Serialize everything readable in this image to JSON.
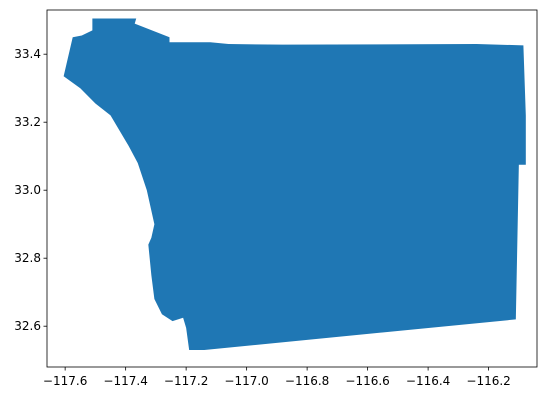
{
  "chart_data": {
    "type": "map",
    "title": "",
    "xlabel": "",
    "ylabel": "",
    "xlim": [
      -117.66,
      -116.04
    ],
    "ylim": [
      32.48,
      33.53
    ],
    "grid": false,
    "x_ticks": [
      {
        "value": -117.6,
        "label": "−117.6"
      },
      {
        "value": -117.4,
        "label": "−117.4"
      },
      {
        "value": -117.2,
        "label": "−117.2"
      },
      {
        "value": -117.0,
        "label": "−117.0"
      },
      {
        "value": -116.8,
        "label": "−116.8"
      },
      {
        "value": -116.6,
        "label": "−116.6"
      },
      {
        "value": -116.4,
        "label": "−116.4"
      },
      {
        "value": -116.2,
        "label": "−116.2"
      }
    ],
    "y_ticks": [
      {
        "value": 32.6,
        "label": "32.6"
      },
      {
        "value": 32.8,
        "label": "32.8"
      },
      {
        "value": 33.0,
        "label": "33.0"
      },
      {
        "value": 33.2,
        "label": "33.2"
      },
      {
        "value": 33.4,
        "label": "33.4"
      }
    ],
    "fill_color": "#1f77b4",
    "region_polygon": [
      [
        -117.51,
        33.505
      ],
      [
        -117.365,
        33.505
      ],
      [
        -117.37,
        33.49
      ],
      [
        -117.255,
        33.45
      ],
      [
        -117.255,
        33.435
      ],
      [
        -117.12,
        33.435
      ],
      [
        -117.06,
        33.43
      ],
      [
        -116.88,
        33.428
      ],
      [
        -116.24,
        33.43
      ],
      [
        -116.085,
        33.426
      ],
      [
        -116.077,
        33.22
      ],
      [
        -116.077,
        33.075
      ],
      [
        -116.1,
        33.075
      ],
      [
        -116.11,
        32.62
      ],
      [
        -117.14,
        32.53
      ],
      [
        -117.19,
        32.53
      ],
      [
        -117.2,
        32.595
      ],
      [
        -117.21,
        32.625
      ],
      [
        -117.245,
        32.615
      ],
      [
        -117.28,
        32.635
      ],
      [
        -117.305,
        32.68
      ],
      [
        -117.315,
        32.75
      ],
      [
        -117.325,
        32.84
      ],
      [
        -117.315,
        32.86
      ],
      [
        -117.305,
        32.9
      ],
      [
        -117.33,
        33.0
      ],
      [
        -117.36,
        33.08
      ],
      [
        -117.39,
        33.13
      ],
      [
        -117.45,
        33.22
      ],
      [
        -117.5,
        33.255
      ],
      [
        -117.55,
        33.3
      ],
      [
        -117.605,
        33.335
      ],
      [
        -117.575,
        33.45
      ],
      [
        -117.545,
        33.455
      ],
      [
        -117.51,
        33.47
      ]
    ]
  }
}
